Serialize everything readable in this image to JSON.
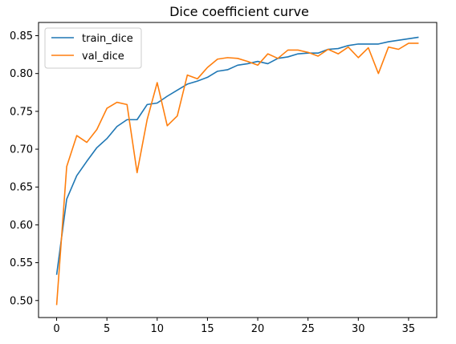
{
  "chart_data": {
    "type": "line",
    "title": "Dice coefficient curve",
    "xlabel": "",
    "ylabel": "",
    "xlim": [
      -1.8,
      37.8
    ],
    "ylim": [
      0.4775,
      0.8675
    ],
    "x_ticks": [
      0,
      5,
      10,
      15,
      20,
      25,
      30,
      35
    ],
    "y_ticks": [
      0.5,
      0.55,
      0.6,
      0.65,
      0.7,
      0.75,
      0.8,
      0.85
    ],
    "grid": false,
    "legend_position": "upper left",
    "series": [
      {
        "name": "train_dice",
        "color": "#1f77b4",
        "x": [
          0,
          1,
          2,
          3,
          4,
          5,
          6,
          7,
          8,
          9,
          10,
          11,
          12,
          13,
          14,
          15,
          16,
          17,
          18,
          19,
          20,
          21,
          22,
          23,
          24,
          25,
          26,
          27,
          28,
          29,
          30,
          31,
          32,
          33,
          34,
          35,
          36
        ],
        "values": [
          0.534,
          0.634,
          0.665,
          0.684,
          0.702,
          0.714,
          0.73,
          0.739,
          0.739,
          0.759,
          0.761,
          0.77,
          0.778,
          0.786,
          0.79,
          0.795,
          0.803,
          0.805,
          0.811,
          0.813,
          0.816,
          0.813,
          0.82,
          0.822,
          0.826,
          0.827,
          0.827,
          0.832,
          0.833,
          0.837,
          0.839,
          0.839,
          0.839,
          0.842,
          0.844,
          0.846,
          0.848
        ]
      },
      {
        "name": "val_dice",
        "color": "#ff7f0e",
        "x": [
          0,
          1,
          2,
          3,
          4,
          5,
          6,
          7,
          8,
          9,
          10,
          11,
          12,
          13,
          14,
          15,
          16,
          17,
          18,
          19,
          20,
          21,
          22,
          23,
          24,
          25,
          26,
          27,
          28,
          29,
          30,
          31,
          32,
          33,
          34,
          35,
          36
        ],
        "values": [
          0.494,
          0.677,
          0.718,
          0.709,
          0.726,
          0.754,
          0.762,
          0.759,
          0.669,
          0.739,
          0.788,
          0.731,
          0.744,
          0.798,
          0.793,
          0.808,
          0.819,
          0.821,
          0.82,
          0.816,
          0.811,
          0.826,
          0.82,
          0.831,
          0.831,
          0.828,
          0.823,
          0.832,
          0.826,
          0.835,
          0.821,
          0.834,
          0.8,
          0.835,
          0.832,
          0.84,
          0.84
        ]
      }
    ]
  }
}
